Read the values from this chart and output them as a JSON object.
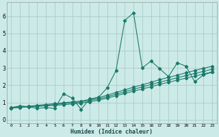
{
  "xlabel": "Humidex (Indice chaleur)",
  "bg_color": "#cceae7",
  "grid_color": "#aaccca",
  "line_color": "#1a7a6a",
  "xlim": [
    -0.5,
    23.5
  ],
  "ylim": [
    -0.2,
    6.8
  ],
  "xticks": [
    0,
    1,
    2,
    3,
    4,
    5,
    6,
    7,
    8,
    9,
    10,
    11,
    12,
    13,
    14,
    15,
    16,
    17,
    18,
    19,
    20,
    21,
    22,
    23
  ],
  "yticks": [
    0,
    1,
    2,
    3,
    4,
    5,
    6
  ],
  "main_series": [
    0.7,
    0.8,
    0.75,
    0.65,
    0.7,
    0.65,
    1.5,
    1.25,
    0.6,
    1.2,
    1.3,
    1.85,
    2.85,
    5.75,
    6.2,
    3.0,
    3.4,
    2.95,
    2.5,
    3.3,
    3.1,
    2.2,
    2.6,
    2.75
  ],
  "trend1": [
    0.68,
    0.73,
    0.78,
    0.83,
    0.88,
    0.93,
    0.98,
    1.03,
    1.08,
    1.18,
    1.28,
    1.42,
    1.58,
    1.73,
    1.88,
    2.02,
    2.17,
    2.32,
    2.45,
    2.58,
    2.72,
    2.85,
    2.98,
    3.1
  ],
  "trend2": [
    0.68,
    0.72,
    0.76,
    0.8,
    0.84,
    0.88,
    0.93,
    0.98,
    1.03,
    1.12,
    1.2,
    1.33,
    1.48,
    1.62,
    1.76,
    1.9,
    2.04,
    2.18,
    2.3,
    2.43,
    2.56,
    2.68,
    2.8,
    2.93
  ],
  "trend3": [
    0.68,
    0.71,
    0.74,
    0.77,
    0.8,
    0.83,
    0.87,
    0.91,
    0.96,
    1.04,
    1.13,
    1.25,
    1.39,
    1.52,
    1.65,
    1.78,
    1.91,
    2.05,
    2.17,
    2.29,
    2.41,
    2.53,
    2.65,
    2.77
  ]
}
